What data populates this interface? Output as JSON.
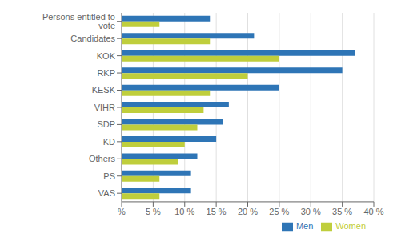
{
  "chart_data": {
    "type": "bar",
    "orientation": "horizontal",
    "categories": [
      "Persons entitled to vote",
      "Candidates",
      "KOK",
      "RKP",
      "KESK",
      "VIHR",
      "SDP",
      "KD",
      "Others",
      "PS",
      "VAS"
    ],
    "series": [
      {
        "name": "Men",
        "color": "#2E75B6",
        "values": [
          14,
          21,
          37,
          35,
          25,
          17,
          16,
          15,
          12,
          11,
          11
        ]
      },
      {
        "name": "Women",
        "color": "#BFCE3C",
        "values": [
          6,
          14,
          25,
          20,
          14,
          13,
          12,
          10,
          9,
          6,
          6
        ]
      }
    ],
    "xlim": [
      0,
      40
    ],
    "xticks": [
      {
        "value": 0,
        "label": "%"
      },
      {
        "value": 5,
        "label": "5 %"
      },
      {
        "value": 10,
        "label": "10 %"
      },
      {
        "value": 15,
        "label": "15 %"
      },
      {
        "value": 20,
        "label": "20 %"
      },
      {
        "value": 25,
        "label": "25 %"
      },
      {
        "value": 30,
        "label": "30 %"
      },
      {
        "value": 35,
        "label": "35 %"
      },
      {
        "value": 40,
        "label": "40 %"
      }
    ],
    "grid": true,
    "legend": "lower right"
  }
}
